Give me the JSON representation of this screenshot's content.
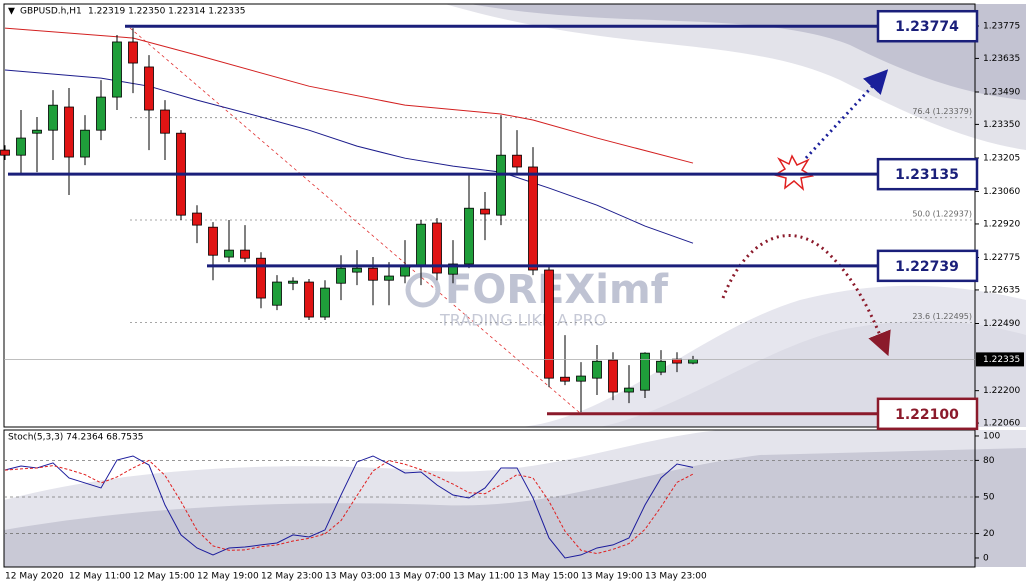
{
  "header": {
    "symbol": "GBPUSD.h,H1",
    "ohlc": "1.22319 1.22350 1.22314 1.22335"
  },
  "watermark": {
    "brand": "FOREXimf",
    "tagline": "TRADING LIKE A PRO"
  },
  "chart_data": [
    {
      "type": "candlestick",
      "categories": [
        "12 May 2020",
        null,
        null,
        null,
        "12 May 11:00",
        null,
        null,
        null,
        "12 May 15:00",
        null,
        null,
        null,
        "12 May 19:00",
        null,
        null,
        null,
        "12 May 23:00",
        null,
        null,
        null,
        "13 May 03:00",
        null,
        null,
        null,
        "13 May 07:00",
        null,
        null,
        null,
        "13 May 11:00",
        null,
        null,
        null,
        "13 May 15:00",
        null,
        null,
        null,
        "13 May 19:00",
        null,
        null,
        null,
        "13 May 23:00",
        null,
        null,
        null
      ],
      "open": [
        1.23239,
        1.23217,
        1.23312,
        1.23325,
        1.23425,
        1.23209,
        1.23325,
        1.23468,
        1.23706,
        1.23598,
        1.23412,
        1.23312,
        1.22967,
        1.22906,
        1.22777,
        1.22807,
        1.22772,
        1.22569,
        1.22664,
        1.22669,
        1.22518,
        1.22664,
        1.22712,
        1.22729,
        1.22677,
        1.22695,
        1.22738,
        1.22924,
        1.22703,
        1.22747,
        1.22984,
        1.22958,
        1.23217,
        1.23166,
        1.22721,
        1.22258,
        1.22241,
        1.22254,
        1.22332,
        1.22194,
        1.22202,
        1.2228,
        1.22336,
        1.22319
      ],
      "high": [
        1.2326,
        1.23412,
        1.23382,
        1.23498,
        1.23507,
        1.2339,
        1.23541,
        1.23736,
        1.23766,
        1.23649,
        1.23455,
        1.23325,
        1.23001,
        1.22928,
        1.22937,
        1.22915,
        1.22798,
        1.22699,
        1.2269,
        1.22682,
        1.22677,
        1.22785,
        1.22807,
        1.22777,
        1.22755,
        1.2285,
        1.22937,
        1.22945,
        1.2285,
        1.23131,
        1.23058,
        1.2339,
        1.23325,
        1.23252,
        1.22742,
        1.2244,
        1.22323,
        1.22397,
        1.22366,
        1.2231,
        1.22366,
        1.22375,
        1.22366,
        1.2235
      ],
      "low": [
        1.23196,
        1.23131,
        1.23144,
        1.23196,
        1.23045,
        1.23174,
        1.23282,
        1.23412,
        1.23485,
        1.23239,
        1.23196,
        1.22937,
        1.22837,
        1.22677,
        1.22755,
        1.22755,
        1.22556,
        1.22548,
        1.22634,
        1.22505,
        1.22505,
        1.22591,
        1.22656,
        1.22569,
        1.22569,
        1.22664,
        1.22656,
        1.22677,
        1.22664,
        1.22729,
        1.2285,
        1.22915,
        1.23131,
        1.22699,
        1.22215,
        1.22224,
        1.22107,
        1.22181,
        1.22159,
        1.22146,
        1.22168,
        1.22267,
        1.2228,
        1.22314
      ],
      "close": [
        1.23217,
        1.23291,
        1.23325,
        1.23433,
        1.23209,
        1.23325,
        1.23468,
        1.23706,
        1.23615,
        1.23412,
        1.23312,
        1.22958,
        1.22915,
        1.22785,
        1.22807,
        1.22772,
        1.226,
        1.22669,
        1.22673,
        1.22518,
        1.22643,
        1.22729,
        1.22729,
        1.22677,
        1.22695,
        1.22738,
        1.22919,
        1.22708,
        1.22747,
        1.22988,
        1.22963,
        1.23217,
        1.23166,
        1.22721,
        1.22254,
        1.22241,
        1.22263,
        1.22327,
        1.22194,
        1.22211,
        1.22362,
        1.22327,
        1.22319,
        1.22335
      ],
      "up_color": "#1f9e3a",
      "down_color": "#e01414",
      "lines": [
        {
          "color": "#d32020",
          "x": [
            0,
            8,
            12,
            19,
            25,
            31,
            33,
            37,
            43
          ],
          "values": [
            1.23766,
            1.23723,
            1.23649,
            1.23515,
            1.23433,
            1.23395,
            1.23369,
            1.23291,
            1.23183
          ]
        },
        {
          "color": "#1c1c8c",
          "x": [
            0,
            6,
            9,
            12,
            16,
            19,
            22,
            25,
            28,
            31,
            34,
            37,
            40,
            43
          ],
          "values": [
            1.23585,
            1.2355,
            1.23515,
            1.23455,
            1.23382,
            1.23325,
            1.23256,
            1.23204,
            1.2317,
            1.23144,
            1.23075,
            1.23001,
            1.22911,
            1.22837
          ]
        }
      ],
      "levels": [
        {
          "value": 1.23774,
          "label": "1.23774",
          "color": "#1a1f7a"
        },
        {
          "value": 1.23135,
          "label": "1.23135",
          "color": "#1a1f7a"
        },
        {
          "value": 1.22739,
          "label": "1.22739",
          "color": "#1a1f7a"
        },
        {
          "value": 1.221,
          "label": "1.22100",
          "color": "#8b1a2b"
        }
      ],
      "fib": [
        {
          "value": 1.23379,
          "label": "76.4 (1.23379)"
        },
        {
          "value": 1.22937,
          "label": "50.0 (1.22937)"
        },
        {
          "value": 1.22495,
          "label": "23.6 (1.22495)"
        }
      ],
      "ylim": [
        1.22043,
        1.2387
      ],
      "yticks": [
        1.23775,
        1.23635,
        {
          "value": 1.2349,
          "label": "1.23490"
        },
        {
          "value": 1.2335,
          "label": "1.23350"
        },
        1.23205,
        {
          "value": 1.2306,
          "label": "1.23060"
        },
        {
          "value": 1.2292,
          "label": "1.22920"
        },
        1.22775,
        1.22635,
        {
          "value": 1.2249,
          "label": "1.22490"
        },
        {
          "value": 1.222,
          "label": "1.22200"
        },
        {
          "value": 1.2206,
          "label": "1.22060"
        }
      ]
    },
    {
      "type": "line",
      "title": "Stoch(5,3,3) 74.2364 68.7535",
      "series": [
        {
          "color": "#1c1c9c",
          "dashed": false,
          "values": [
            72.1,
            75.4,
            73.8,
            77.9,
            65.6,
            61.5,
            57.4,
            80.3,
            83.6,
            76.2,
            43.4,
            18.9,
            8.2,
            2.5,
            8.2,
            9.0,
            10.7,
            12.3,
            18.9,
            17.2,
            23.0,
            51.6,
            78.7,
            83.6,
            77.0,
            69.7,
            70.5,
            59.8,
            51.6,
            49.2,
            57.4,
            73.8,
            73.8,
            49.2,
            16.4,
            0,
            2.5,
            8.2,
            10.7,
            16.4,
            43.4,
            65.6,
            77.0,
            74.2364
          ]
        },
        {
          "color": "#e02020",
          "dashed": true,
          "values": [
            72,
            73,
            73.8,
            75.7,
            72.4,
            68.3,
            61.5,
            66.4,
            73.8,
            80,
            67.7,
            46.2,
            22.8,
            9.9,
            6.3,
            6.6,
            9.3,
            10.7,
            13.9,
            16.1,
            19.7,
            30.6,
            51.1,
            71.3,
            79.8,
            76.8,
            72.4,
            66.7,
            60.6,
            53.5,
            52.7,
            60.1,
            68.3,
            65.6,
            46.5,
            21.9,
            6.3,
            3.6,
            7.1,
            11.8,
            23.5,
            41.8,
            62.0,
            68.7535
          ]
        }
      ],
      "levels": [
        80,
        50,
        20
      ],
      "ylim": [
        -7.4,
        104.9
      ],
      "yticks": [
        100,
        80,
        50,
        20,
        0
      ]
    }
  ]
}
